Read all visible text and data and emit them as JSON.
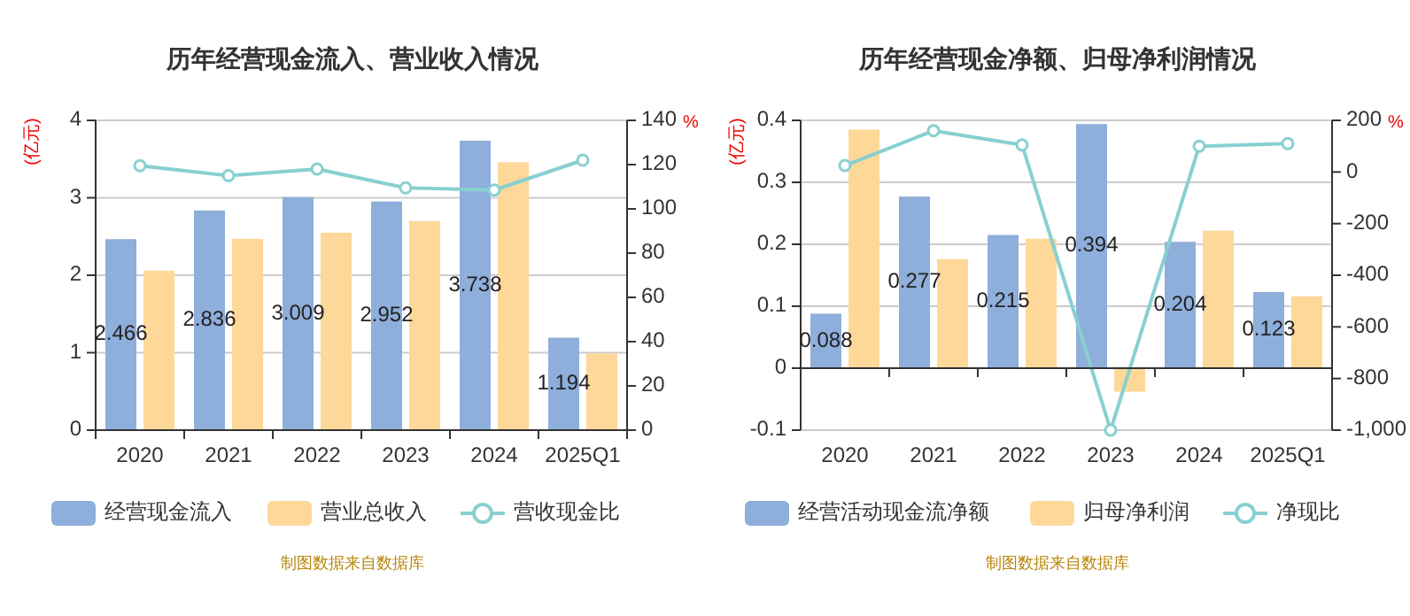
{
  "chart_data": [
    {
      "type": "bar",
      "title": "历年经营现金流入、营业收入情况",
      "ylabel": "(亿元)",
      "y2label": "%",
      "categories": [
        "2020",
        "2021",
        "2022",
        "2023",
        "2024",
        "2025Q1"
      ],
      "ylim": [
        0,
        4
      ],
      "yticks": [
        0,
        1,
        2,
        3,
        4
      ],
      "y2lim": [
        0,
        140
      ],
      "y2ticks": [
        0,
        20,
        40,
        60,
        80,
        100,
        120,
        140
      ],
      "grid": "y",
      "legend": "bottom",
      "marker": "circle",
      "annotations": [
        "制图数据来自数据库"
      ],
      "series": [
        {
          "name": "经营现金流入",
          "color": "#8eaedb",
          "values": [
            2.466,
            2.836,
            3.009,
            2.952,
            3.738,
            1.194
          ],
          "value_labels": [
            "2.466",
            "2.836",
            "3.009",
            "2.952",
            "3.738",
            "1.194"
          ]
        },
        {
          "name": "营业总收入",
          "color": "#fdd899",
          "values": [
            2.06,
            2.47,
            2.55,
            2.7,
            3.46,
            0.99
          ]
        },
        {
          "name": "营收现金比",
          "type": "line",
          "axis": "y2",
          "color": "#88d0d0",
          "values": [
            119.5,
            115,
            118,
            109.5,
            108.5,
            122
          ]
        }
      ]
    },
    {
      "type": "bar",
      "title": "历年经营现金净额、归母净利润情况",
      "ylabel": "(亿元)",
      "y2label": "%",
      "categories": [
        "2020",
        "2021",
        "2022",
        "2023",
        "2024",
        "2025Q1"
      ],
      "ylim": [
        -0.1,
        0.4
      ],
      "yticks": [
        -0.1,
        0,
        0.1,
        0.2,
        0.3,
        0.4
      ],
      "y2lim": [
        -1000,
        200
      ],
      "y2ticks": [
        {
          "value": -1000,
          "label": "-1,000"
        },
        -800,
        -600,
        -400,
        -200,
        0,
        200
      ],
      "grid": "y",
      "legend": "bottom",
      "marker": "circle",
      "annotations": [
        "制图数据来自数据库"
      ],
      "series": [
        {
          "name": "经营活动现金流净额",
          "color": "#8eaedb",
          "values": [
            0.088,
            0.277,
            0.215,
            0.394,
            0.204,
            0.123
          ],
          "value_labels": [
            "0.088",
            "0.277",
            "0.215",
            "0.394",
            "0.204",
            "0.123"
          ]
        },
        {
          "name": "归母净利润",
          "color": "#fdd899",
          "values": [
            0.385,
            0.176,
            0.209,
            -0.038,
            0.222,
            0.116
          ]
        },
        {
          "name": "净现比",
          "type": "line",
          "axis": "y2",
          "color": "#88d0d0",
          "values": [
            25,
            160,
            105,
            -1000,
            100,
            110
          ]
        }
      ]
    }
  ]
}
